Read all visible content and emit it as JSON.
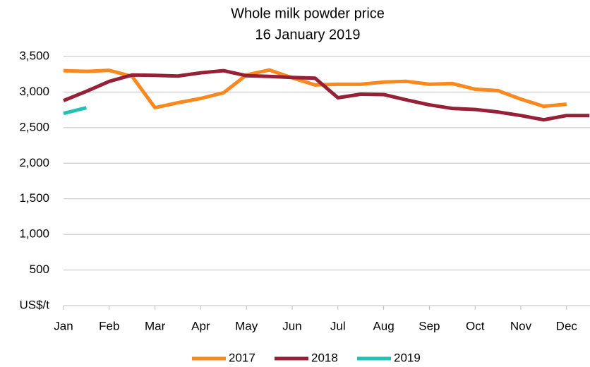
{
  "chart_data": {
    "type": "line",
    "title": "Whole milk powder price",
    "subtitle": "16 January 2019",
    "categories": [
      "Jan",
      null,
      "Feb",
      null,
      "Mar",
      null,
      "Apr",
      null,
      "May",
      null,
      "Jun",
      null,
      "Jul",
      null,
      "Aug",
      null,
      "Sep",
      null,
      "Oct",
      null,
      "Nov",
      null,
      "Dec",
      null
    ],
    "series": [
      {
        "name": "2017",
        "color": "#f7891f",
        "values": [
          3300,
          3290,
          3305,
          3220,
          2780,
          2850,
          2910,
          2990,
          3240,
          3310,
          3200,
          3100,
          3110,
          3110,
          3140,
          3150,
          3110,
          3120,
          3040,
          3020,
          2900,
          2800,
          2830,
          null
        ]
      },
      {
        "name": "2018",
        "color": "#952037",
        "values": [
          2880,
          3010,
          3150,
          3240,
          3235,
          3225,
          3270,
          3300,
          3230,
          3220,
          3205,
          3195,
          2920,
          2970,
          2965,
          2890,
          2820,
          2770,
          2755,
          2720,
          2670,
          2610,
          2670,
          2670
        ]
      },
      {
        "name": "2019",
        "color": "#22c1b4",
        "values": [
          2700,
          2780,
          null,
          null,
          null,
          null,
          null,
          null,
          null,
          null,
          null,
          null,
          null,
          null,
          null,
          null,
          null,
          null,
          null,
          null,
          null,
          null,
          null,
          null
        ]
      }
    ],
    "ylim": [
      0,
      3500
    ],
    "yticks": [
      {
        "value": 0,
        "label": "US$/t"
      },
      500,
      {
        "value": 1000,
        "label": "1,000"
      },
      {
        "value": 1500,
        "label": "1,500"
      },
      {
        "value": 2000,
        "label": "2,000"
      },
      {
        "value": 2500,
        "label": "2,500"
      },
      {
        "value": 3000,
        "label": "3,000"
      },
      {
        "value": 3500,
        "label": "3,500"
      }
    ],
    "grid": true,
    "legend": "bottom"
  }
}
